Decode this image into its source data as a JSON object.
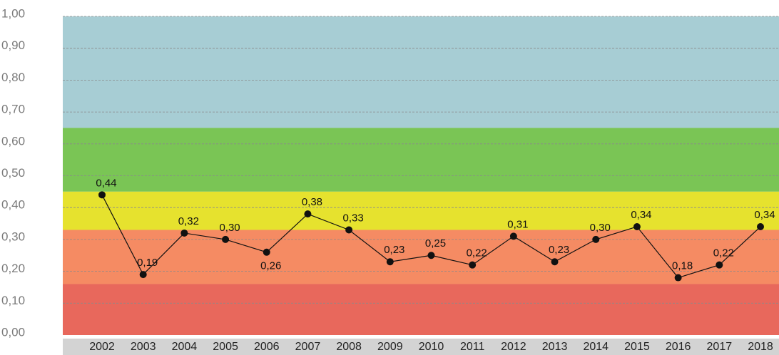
{
  "chart_data": {
    "type": "line",
    "categories": [
      "2002",
      "2003",
      "2004",
      "2005",
      "2006",
      "2007",
      "2008",
      "2009",
      "2010",
      "2011",
      "2012",
      "2013",
      "2014",
      "2015",
      "2016",
      "2017",
      "2018"
    ],
    "values": [
      0.44,
      0.19,
      0.32,
      0.3,
      0.26,
      0.38,
      0.33,
      0.23,
      0.25,
      0.22,
      0.31,
      0.23,
      0.3,
      0.34,
      0.18,
      0.22,
      0.34
    ],
    "value_labels": [
      "0,44",
      "0,19",
      "0,32",
      "0,30",
      "0,26",
      "0,38",
      "0,33",
      "0,23",
      "0,25",
      "0,22",
      "0,31",
      "0,23",
      "0,30",
      "0,34",
      "0,18",
      "0,22",
      "0,34"
    ],
    "color": "#111111",
    "ylim": [
      0,
      1
    ],
    "yticks": [
      {
        "value": 0,
        "label": "0,00"
      },
      {
        "value": 0.1,
        "label": "0,10"
      },
      {
        "value": 0.2,
        "label": "0,20"
      },
      {
        "value": 0.3,
        "label": "0,30"
      },
      {
        "value": 0.4,
        "label": "0,40"
      },
      {
        "value": 0.5,
        "label": "0,50"
      },
      {
        "value": 0.6,
        "label": "0,60"
      },
      {
        "value": 0.7,
        "label": "0,70"
      },
      {
        "value": 0.8,
        "label": "0,80"
      },
      {
        "value": 0.9,
        "label": "0,90"
      },
      {
        "value": 1,
        "label": "1,00"
      }
    ],
    "grid": true,
    "bands": [
      {
        "from": 0.65,
        "to": 1,
        "color": "#a7cdd4"
      },
      {
        "from": 0.45,
        "to": 0.65,
        "color": "#7ac555"
      },
      {
        "from": 0.33,
        "to": 0.45,
        "color": "#e6e22e"
      },
      {
        "from": 0.16,
        "to": 0.33,
        "color": "#f58b63"
      },
      {
        "from": 0,
        "to": 0.16,
        "color": "#e8685c"
      }
    ]
  }
}
